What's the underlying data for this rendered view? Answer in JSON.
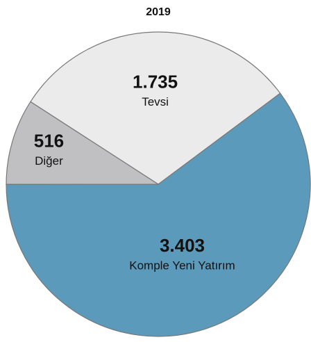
{
  "chart_data": {
    "type": "pie",
    "title": "2019",
    "categories": [
      "Komple Yeni Yatırım",
      "Diğer",
      "Tevsi"
    ],
    "values": [
      3403,
      516,
      1735
    ],
    "value_labels": [
      "3.403",
      "516",
      "1.735"
    ],
    "colors": [
      "#5b9aba",
      "#c0c0c2",
      "#ebebeb"
    ]
  }
}
